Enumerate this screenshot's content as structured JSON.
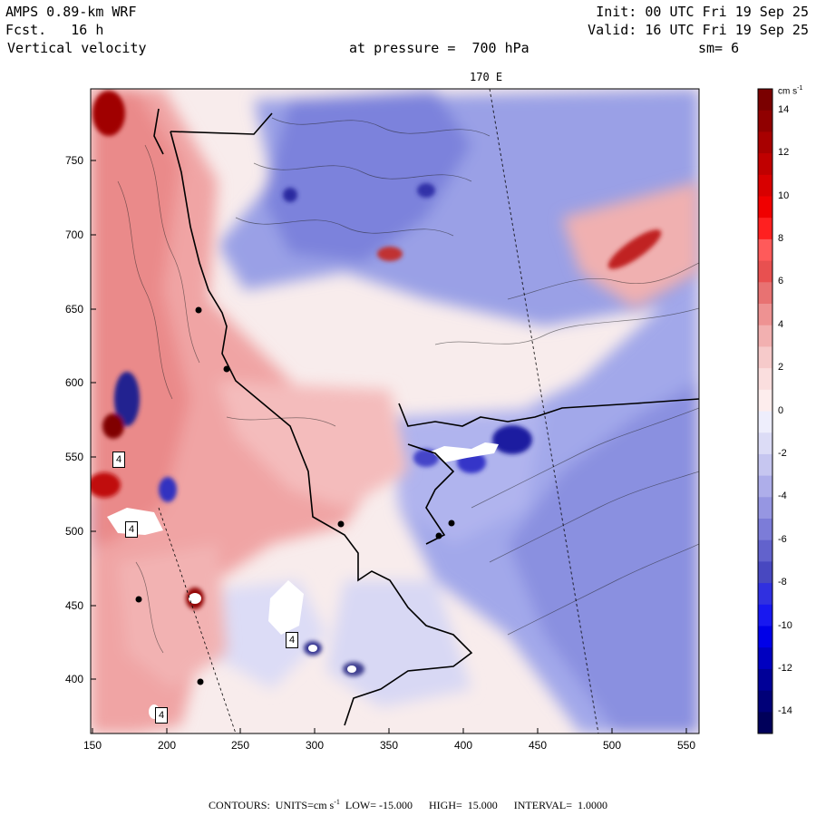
{
  "header": {
    "model": "AMPS 0.89-km WRF",
    "fcst_label": "Fcst.",
    "fcst_value": "16 h",
    "field": "Vertical velocity",
    "pressure_label": "at pressure =",
    "pressure_value": "700 hPa",
    "init": "Init: 00 UTC Fri 19 Sep 25",
    "valid": "Valid: 16 UTC Fri 19 Sep 25",
    "smoothing": "sm= 6"
  },
  "map": {
    "meridian_label": "170 E",
    "x_ticks": [
      "150",
      "200",
      "250",
      "300",
      "350",
      "400",
      "450",
      "500",
      "550"
    ],
    "y_ticks": [
      "750",
      "700",
      "650",
      "600",
      "550",
      "500",
      "450",
      "400"
    ],
    "box_labels": [
      "4",
      "4",
      "4",
      "4"
    ]
  },
  "colorbar": {
    "units": "cm s",
    "units_exp": "-1",
    "ticks": [
      "14",
      "12",
      "10",
      "8",
      "6",
      "4",
      "2",
      "0",
      "-2",
      "-4",
      "-6",
      "-8",
      "-10",
      "-12",
      "-14"
    ],
    "colors": [
      "#7a0000",
      "#900000",
      "#a80000",
      "#c00000",
      "#d80000",
      "#f00000",
      "#ff2020",
      "#ff5a5a",
      "#e85050",
      "#e87272",
      "#ee9292",
      "#f2b0b0",
      "#f6caca",
      "#fadede",
      "#fdeded",
      "#eeeefc",
      "#dcdcf6",
      "#c6c6f0",
      "#aeaeea",
      "#9696e2",
      "#7c7cd8",
      "#6262cc",
      "#4848c0",
      "#3030e0",
      "#1818f0",
      "#0000e8",
      "#0000c0",
      "#000098",
      "#000078",
      "#00005a"
    ]
  },
  "footer": {
    "contours": "CONTOURS:  UNITS=cm s",
    "units_exp": "-1",
    "low_label": "LOW=",
    "low": "-15.000",
    "high_label": "HIGH=",
    "high": "15.000",
    "interval_label": "INTERVAL=",
    "interval": "1.0000"
  }
}
